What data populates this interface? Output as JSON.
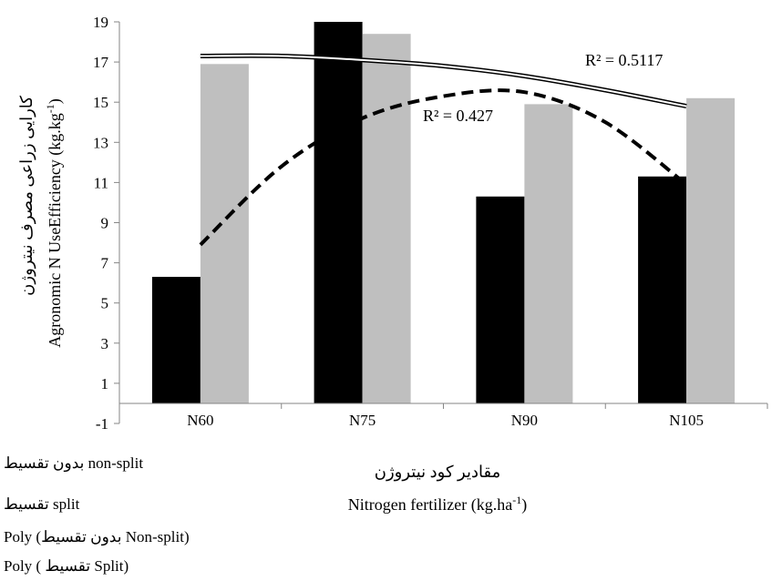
{
  "chart_data": {
    "type": "bar",
    "categories": [
      "N60",
      "N75",
      "N90",
      "N105"
    ],
    "series": [
      {
        "name": "بدون تقسیط non-split",
        "color": "#000000",
        "values": [
          6.3,
          19.0,
          10.3,
          11.3
        ]
      },
      {
        "name": "تقسیط split",
        "color": "#bfbfbf",
        "values": [
          16.9,
          18.4,
          14.9,
          15.2
        ]
      }
    ],
    "trendlines": [
      {
        "name": "Poly (Non-split بدون تقسیط)",
        "style": "dashed",
        "color": "#000000",
        "x": [
          1,
          1.5,
          2,
          2.5,
          3,
          3.5,
          4
        ],
        "values": [
          7.9,
          11.8,
          14.2,
          15.3,
          15.5,
          14.0,
          10.9
        ]
      },
      {
        "name": "Poly (Split تقسیط)",
        "style": "double",
        "color": "#000000",
        "x": [
          1,
          1.5,
          2,
          2.5,
          3,
          3.5,
          4
        ],
        "values": [
          17.3,
          17.3,
          17.1,
          16.8,
          16.3,
          15.6,
          14.8
        ]
      }
    ],
    "annotations": [
      {
        "text": "R² = 0.5117"
      },
      {
        "text": "R² = 0.427"
      }
    ],
    "ylabel_fa": "کارایی زراعی مصرف نیتروژن",
    "ylabel_en": "Agronomic N UseEfficiency  (kg.kg-1)",
    "xlabel_fa": "مقادیر کود نیتروژن",
    "xlabel_en": "Nitrogen fertilizer  (kg.ha-1)",
    "ylim": [
      -1,
      19
    ],
    "yticks": [
      -1,
      1,
      3,
      5,
      7,
      9,
      11,
      13,
      15,
      17,
      19
    ],
    "grid": false,
    "legend_position": "bottom-left"
  },
  "legend": [
    {
      "label": "بدون تقسیط non-split"
    },
    {
      "label": "تقسیط split"
    },
    {
      "label": "Poly  (بدون تقسیط Non-split)"
    },
    {
      "label": "Poly  ( تقسیط Split)"
    }
  ]
}
